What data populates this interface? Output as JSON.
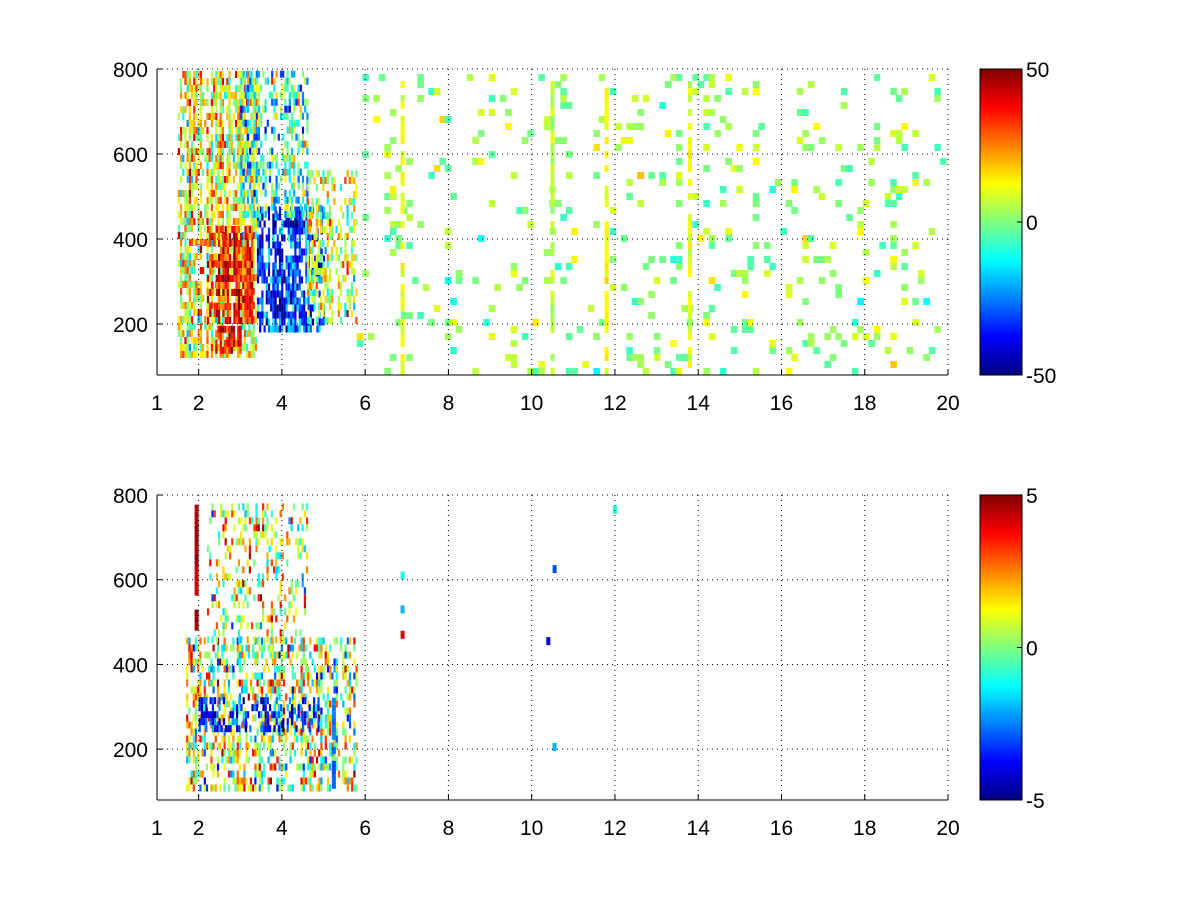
{
  "chart_data": [
    {
      "type": "heatmap",
      "title": "",
      "xlabel": "",
      "ylabel": "",
      "xlim": [
        1,
        20
      ],
      "ylim": [
        80,
        800
      ],
      "x_ticks": [
        "1",
        "2",
        "4",
        "6",
        "8",
        "10",
        "12",
        "14",
        "16",
        "18",
        "20"
      ],
      "x_tick_values": [
        1,
        2,
        4,
        6,
        8,
        10,
        12,
        14,
        16,
        18,
        20
      ],
      "y_ticks": [
        "200",
        "400",
        "600",
        "800"
      ],
      "y_tick_values": [
        200,
        400,
        600,
        800
      ],
      "grid": "dotted",
      "colormap": "jet",
      "colorbar": {
        "min": -50,
        "max": 50,
        "ticks": [
          "50",
          "0",
          "-50"
        ],
        "tick_values": [
          50,
          0,
          -50
        ]
      },
      "description_of_field": "sparse speckled field; dense, strong values between x=1.5 and x=5.8 (positive/red near x=2.5-3.5, y=150-400; negative/blue near x=3.5-5, y=200-450); weak near-zero speckles out to x=20; bright vertical streaks at x~11.8 and x~13.8",
      "regions": [
        {
          "x": [
            1.5,
            3.4
          ],
          "y": [
            120,
            800
          ],
          "mean": 12,
          "spread": 14,
          "density": 0.75
        },
        {
          "x": [
            2.2,
            3.3
          ],
          "y": [
            200,
            420
          ],
          "mean": 35,
          "spread": 10,
          "density": 0.9
        },
        {
          "x": [
            2.4,
            3.0
          ],
          "y": [
            130,
            180
          ],
          "mean": 38,
          "spread": 8,
          "density": 0.8
        },
        {
          "x": [
            3.4,
            5.0
          ],
          "y": [
            180,
            470
          ],
          "mean": -32,
          "spread": 12,
          "density": 0.85
        },
        {
          "x": [
            3.0,
            4.6
          ],
          "y": [
            450,
            800
          ],
          "mean": -8,
          "spread": 16,
          "density": 0.6
        },
        {
          "x": [
            4.6,
            5.8
          ],
          "y": [
            200,
            560
          ],
          "mean": 8,
          "spread": 12,
          "density": 0.6
        },
        {
          "x": [
            5.8,
            20
          ],
          "y": [
            80,
            800
          ],
          "mean": 2,
          "spread": 6,
          "density": 0.12
        }
      ],
      "streaks": [
        {
          "x": 11.8,
          "y": [
            80,
            800
          ],
          "value": 12
        },
        {
          "x": 13.8,
          "y": [
            80,
            800
          ],
          "value": 10
        },
        {
          "x": 10.5,
          "y": [
            80,
            800
          ],
          "value": 6
        },
        {
          "x": 6.9,
          "y": [
            80,
            800
          ],
          "value": 10
        }
      ]
    },
    {
      "type": "heatmap",
      "title": "",
      "xlabel": "",
      "ylabel": "",
      "xlim": [
        1,
        20
      ],
      "ylim": [
        80,
        800
      ],
      "x_ticks": [
        "1",
        "2",
        "4",
        "6",
        "8",
        "10",
        "12",
        "14",
        "16",
        "18",
        "20"
      ],
      "x_tick_values": [
        1,
        2,
        4,
        6,
        8,
        10,
        12,
        14,
        16,
        18,
        20
      ],
      "y_ticks": [
        "200",
        "400",
        "600",
        "800"
      ],
      "y_tick_values": [
        200,
        400,
        600,
        800
      ],
      "grid": "dotted",
      "colormap": "jet",
      "colorbar": {
        "min": -5,
        "max": 5,
        "ticks": [
          "5",
          "0",
          "-5"
        ],
        "tick_values": [
          5,
          0,
          -5
        ]
      },
      "description_of_field": "data mostly confined to x=1.5-5.8, y=100-780; mixed values with blue band near y=250-300; isolated points near x=6.9, 10.5, 12",
      "regions": [
        {
          "x": [
            1.7,
            5.8
          ],
          "y": [
            100,
            450
          ],
          "mean": 0.5,
          "spread": 2.0,
          "density": 0.6
        },
        {
          "x": [
            2.0,
            4.9
          ],
          "y": [
            240,
            320
          ],
          "mean": -3.5,
          "spread": 1.2,
          "density": 0.6
        },
        {
          "x": [
            2.2,
            4.6
          ],
          "y": [
            450,
            780
          ],
          "mean": 0.8,
          "spread": 1.8,
          "density": 0.35
        }
      ],
      "streaks": [
        {
          "x": 1.95,
          "y": [
            480,
            800
          ],
          "value": 4.5
        },
        {
          "x": 5.25,
          "y": [
            90,
            320
          ],
          "value": -2.5
        }
      ],
      "points": [
        {
          "x": 6.9,
          "y": 610,
          "value": -1
        },
        {
          "x": 6.9,
          "y": 470,
          "value": 4
        },
        {
          "x": 6.9,
          "y": 530,
          "value": -2
        },
        {
          "x": 10.55,
          "y": 625,
          "value": -3
        },
        {
          "x": 10.4,
          "y": 455,
          "value": -4
        },
        {
          "x": 10.55,
          "y": 205,
          "value": -2
        },
        {
          "x": 12.0,
          "y": 765,
          "value": -1
        }
      ]
    }
  ]
}
